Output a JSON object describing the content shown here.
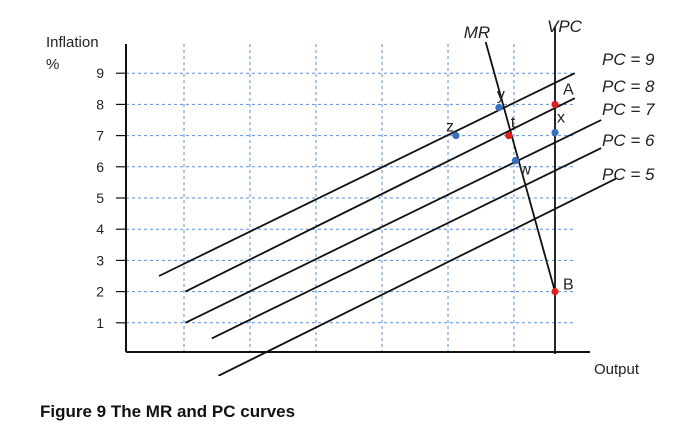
{
  "figure_caption": "Figure 9 The MR and PC curves",
  "chart_data": {
    "type": "line",
    "ylabel_line1": "Inflation",
    "ylabel_line2": "%",
    "xlabel": "Output",
    "ylim": [
      0,
      9
    ],
    "yticks": [
      1,
      2,
      3,
      4,
      5,
      6,
      7,
      8,
      9
    ],
    "xlim": [
      0,
      14
    ],
    "grid": true,
    "colors": {
      "curve": "#111111",
      "grid": "#5b8fd6",
      "point_red": "#e02020",
      "point_blue": "#3a6ec2",
      "label_red": "#e02020"
    },
    "series": [
      {
        "name": "PC = 9",
        "points": [
          [
            1.0,
            2.5
          ],
          [
            13.6,
            9.0
          ]
        ]
      },
      {
        "name": "PC = 8",
        "points": [
          [
            1.8,
            2.0
          ],
          [
            13.6,
            8.2
          ]
        ]
      },
      {
        "name": "PC = 7",
        "points": [
          [
            1.8,
            1.0
          ],
          [
            14.4,
            7.5
          ]
        ]
      },
      {
        "name": "PC = 6",
        "points": [
          [
            2.6,
            0.5
          ],
          [
            14.4,
            6.6
          ]
        ]
      },
      {
        "name": "PC = 5",
        "points": [
          [
            2.8,
            -0.7
          ],
          [
            15.0,
            5.7
          ]
        ]
      },
      {
        "name": "MR",
        "points": [
          [
            10.9,
            10.0
          ],
          [
            13.0,
            2.0
          ]
        ]
      },
      {
        "name": "VPC",
        "points": [
          [
            13.0,
            10.5
          ],
          [
            13.0,
            0.0
          ]
        ]
      }
    ],
    "points": [
      {
        "label": "A",
        "x": 13.0,
        "y": 8.0,
        "color": "red"
      },
      {
        "label": "B",
        "x": 13.0,
        "y": 2.0,
        "color": "red"
      },
      {
        "label": "t",
        "x": 11.6,
        "y": 7.0,
        "color": "red"
      },
      {
        "label": "y",
        "x": 11.3,
        "y": 7.9,
        "color": "blue"
      },
      {
        "label": "x",
        "x": 13.0,
        "y": 7.1,
        "color": "blue"
      },
      {
        "label": "z",
        "x": 10.0,
        "y": 7.0,
        "color": "blue"
      },
      {
        "label": "w",
        "x": 11.8,
        "y": 6.2,
        "color": "blue"
      }
    ]
  }
}
